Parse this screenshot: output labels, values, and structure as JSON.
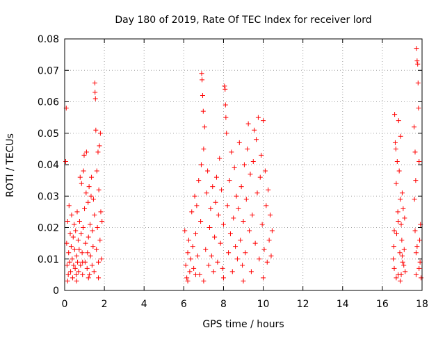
{
  "chart_data": {
    "type": "scatter",
    "title": "Day 180 of 2019, Rate Of TEC Index for receiver lord",
    "xlabel": "GPS time / hours",
    "ylabel": "ROTI / TECUs",
    "xlim": [
      0,
      18
    ],
    "ylim": [
      0,
      0.08
    ],
    "grid": true,
    "marker": "+",
    "color": "#ff0000",
    "x_ticks": [
      {
        "value": 0,
        "label": "0"
      },
      {
        "value": 2,
        "label": "2"
      },
      {
        "value": 4,
        "label": "4"
      },
      {
        "value": 6,
        "label": "6"
      },
      {
        "value": 8,
        "label": "8"
      },
      {
        "value": 10,
        "label": "10"
      },
      {
        "value": 12,
        "label": "12"
      },
      {
        "value": 14,
        "label": "14"
      },
      {
        "value": 16,
        "label": "16"
      },
      {
        "value": 18,
        "label": "18"
      }
    ],
    "y_ticks": [
      {
        "value": 0,
        "label": "0"
      },
      {
        "value": 0.01,
        "label": "0.01"
      },
      {
        "value": 0.02,
        "label": "0.02"
      },
      {
        "value": 0.03,
        "label": "0.03"
      },
      {
        "value": 0.04,
        "label": "0.04"
      },
      {
        "value": 0.05,
        "label": "0.05"
      },
      {
        "value": 0.06,
        "label": "0.06"
      },
      {
        "value": 0.07,
        "label": "0.07"
      },
      {
        "value": 0.08,
        "label": "0.08"
      }
    ],
    "series": [
      {
        "name": "ROTI",
        "points": [
          [
            0.05,
            0.041
          ],
          [
            0.08,
            0.058
          ],
          [
            0.1,
            0.015
          ],
          [
            0.12,
            0.008
          ],
          [
            0.15,
            0.022
          ],
          [
            0.18,
            0.005
          ],
          [
            0.2,
            0.012
          ],
          [
            0.22,
            0.027
          ],
          [
            0.25,
            0.009
          ],
          [
            0.28,
            0.018
          ],
          [
            0.3,
            0.006
          ],
          [
            0.33,
            0.014
          ],
          [
            0.35,
            0.024
          ],
          [
            0.38,
            0.01
          ],
          [
            0.4,
            0.004
          ],
          [
            0.43,
            0.017
          ],
          [
            0.45,
            0.008
          ],
          [
            0.48,
            0.021
          ],
          [
            0.5,
            0.013
          ],
          [
            0.53,
            0.007
          ],
          [
            0.55,
            0.019
          ],
          [
            0.58,
            0.005
          ],
          [
            0.6,
            0.011
          ],
          [
            0.63,
            0.025
          ],
          [
            0.65,
            0.009
          ],
          [
            0.68,
            0.016
          ],
          [
            0.7,
            0.006
          ],
          [
            0.73,
            0.013
          ],
          [
            0.75,
            0.022
          ],
          [
            0.78,
            0.036
          ],
          [
            0.8,
            0.008
          ],
          [
            0.83,
            0.018
          ],
          [
            0.85,
            0.034
          ],
          [
            0.88,
            0.012
          ],
          [
            0.9,
            0.005
          ],
          [
            0.93,
            0.02
          ],
          [
            0.95,
            0.038
          ],
          [
            0.98,
            0.043
          ],
          [
            1.0,
            0.026
          ],
          [
            1.03,
            0.009
          ],
          [
            1.05,
            0.015
          ],
          [
            1.08,
            0.031
          ],
          [
            1.1,
            0.044
          ],
          [
            1.13,
            0.007
          ],
          [
            1.15,
            0.012
          ],
          [
            1.18,
            0.028
          ],
          [
            1.2,
            0.017
          ],
          [
            1.23,
            0.033
          ],
          [
            1.25,
            0.005
          ],
          [
            1.28,
            0.021
          ],
          [
            1.3,
            0.011
          ],
          [
            1.33,
            0.03
          ],
          [
            1.35,
            0.036
          ],
          [
            1.38,
            0.008
          ],
          [
            1.4,
            0.019
          ],
          [
            1.43,
            0.014
          ],
          [
            1.45,
            0.029
          ],
          [
            1.48,
            0.006
          ],
          [
            1.5,
            0.024
          ],
          [
            1.52,
            0.066
          ],
          [
            1.53,
            0.063
          ],
          [
            1.55,
            0.061
          ],
          [
            1.57,
            0.051
          ],
          [
            1.6,
            0.013
          ],
          [
            1.62,
            0.038
          ],
          [
            1.65,
            0.02
          ],
          [
            1.68,
            0.044
          ],
          [
            1.7,
            0.009
          ],
          [
            1.72,
            0.032
          ],
          [
            1.75,
            0.046
          ],
          [
            1.78,
            0.016
          ],
          [
            1.8,
            0.05
          ],
          [
            1.82,
            0.025
          ],
          [
            1.85,
            0.01
          ],
          [
            1.88,
            0.022
          ],
          [
            0.15,
            0.003
          ],
          [
            0.6,
            0.003
          ],
          [
            1.2,
            0.004
          ],
          [
            1.7,
            0.004
          ],
          [
            0.9,
            0.009
          ],
          [
            6.05,
            0.019
          ],
          [
            6.1,
            0.008
          ],
          [
            6.15,
            0.004
          ],
          [
            6.2,
            0.012
          ],
          [
            6.25,
            0.016
          ],
          [
            6.3,
            0.006
          ],
          [
            6.35,
            0.01
          ],
          [
            6.4,
            0.025
          ],
          [
            6.45,
            0.014
          ],
          [
            6.5,
            0.007
          ],
          [
            6.55,
            0.03
          ],
          [
            6.6,
            0.018
          ],
          [
            6.65,
            0.027
          ],
          [
            6.7,
            0.011
          ],
          [
            6.75,
            0.035
          ],
          [
            6.8,
            0.005
          ],
          [
            6.85,
            0.022
          ],
          [
            6.88,
            0.04
          ],
          [
            6.9,
            0.069
          ],
          [
            6.92,
            0.067
          ],
          [
            6.95,
            0.062
          ],
          [
            6.98,
            0.057
          ],
          [
            7.0,
            0.045
          ],
          [
            7.05,
            0.052
          ],
          [
            7.1,
            0.013
          ],
          [
            7.15,
            0.031
          ],
          [
            7.2,
            0.038
          ],
          [
            7.25,
            0.008
          ],
          [
            7.3,
            0.02
          ],
          [
            7.35,
            0.026
          ],
          [
            7.4,
            0.011
          ],
          [
            7.45,
            0.033
          ],
          [
            7.5,
            0.006
          ],
          [
            7.55,
            0.017
          ],
          [
            7.6,
            0.028
          ],
          [
            7.65,
            0.036
          ],
          [
            7.7,
            0.009
          ],
          [
            7.75,
            0.024
          ],
          [
            7.8,
            0.042
          ],
          [
            7.85,
            0.015
          ],
          [
            7.9,
            0.032
          ],
          [
            7.95,
            0.007
          ],
          [
            8.0,
            0.021
          ],
          [
            8.05,
            0.065
          ],
          [
            8.08,
            0.064
          ],
          [
            8.1,
            0.059
          ],
          [
            8.12,
            0.055
          ],
          [
            8.15,
            0.05
          ],
          [
            8.2,
            0.027
          ],
          [
            8.25,
            0.012
          ],
          [
            8.3,
            0.035
          ],
          [
            8.35,
            0.018
          ],
          [
            8.4,
            0.044
          ],
          [
            8.45,
            0.006
          ],
          [
            8.5,
            0.023
          ],
          [
            8.55,
            0.039
          ],
          [
            8.6,
            0.014
          ],
          [
            8.65,
            0.03
          ],
          [
            8.7,
            0.01
          ],
          [
            8.75,
            0.026
          ],
          [
            8.8,
            0.047
          ],
          [
            8.85,
            0.016
          ],
          [
            8.9,
            0.033
          ],
          [
            8.95,
            0.008
          ],
          [
            9.0,
            0.022
          ],
          [
            9.05,
            0.04
          ],
          [
            9.1,
            0.012
          ],
          [
            9.15,
            0.029
          ],
          [
            9.2,
            0.045
          ],
          [
            9.25,
            0.053
          ],
          [
            9.3,
            0.019
          ],
          [
            9.35,
            0.037
          ],
          [
            9.4,
            0.006
          ],
          [
            9.45,
            0.024
          ],
          [
            9.5,
            0.041
          ],
          [
            9.55,
            0.051
          ],
          [
            9.6,
            0.015
          ],
          [
            9.65,
            0.048
          ],
          [
            9.7,
            0.031
          ],
          [
            9.75,
            0.055
          ],
          [
            9.8,
            0.01
          ],
          [
            9.85,
            0.036
          ],
          [
            9.9,
            0.043
          ],
          [
            9.95,
            0.021
          ],
          [
            10.0,
            0.054
          ],
          [
            10.05,
            0.013
          ],
          [
            10.1,
            0.038
          ],
          [
            10.15,
            0.027
          ],
          [
            10.2,
            0.009
          ],
          [
            10.25,
            0.032
          ],
          [
            10.3,
            0.016
          ],
          [
            10.35,
            0.024
          ],
          [
            10.4,
            0.011
          ],
          [
            10.45,
            0.019
          ],
          [
            6.2,
            0.003
          ],
          [
            7.0,
            0.003
          ],
          [
            8.0,
            0.004
          ],
          [
            9.0,
            0.003
          ],
          [
            10.0,
            0.004
          ],
          [
            6.6,
            0.005
          ],
          [
            16.55,
            0.01
          ],
          [
            16.58,
            0.014
          ],
          [
            16.6,
            0.007
          ],
          [
            16.62,
            0.056
          ],
          [
            16.65,
            0.047
          ],
          [
            16.68,
            0.045
          ],
          [
            16.7,
            0.034
          ],
          [
            16.72,
            0.018
          ],
          [
            16.75,
            0.041
          ],
          [
            16.78,
            0.025
          ],
          [
            16.8,
            0.005
          ],
          [
            16.82,
            0.054
          ],
          [
            16.85,
            0.038
          ],
          [
            16.88,
            0.012
          ],
          [
            16.9,
            0.029
          ],
          [
            16.92,
            0.049
          ],
          [
            16.95,
            0.021
          ],
          [
            16.98,
            0.016
          ],
          [
            17.0,
            0.031
          ],
          [
            17.02,
            0.009
          ],
          [
            17.05,
            0.026
          ],
          [
            17.08,
            0.008
          ],
          [
            17.1,
            0.013
          ],
          [
            17.12,
            0.023
          ],
          [
            17.15,
            0.006
          ],
          [
            17.6,
            0.052
          ],
          [
            17.62,
            0.029
          ],
          [
            17.65,
            0.044
          ],
          [
            17.68,
            0.035
          ],
          [
            17.7,
            0.012
          ],
          [
            17.72,
            0.077
          ],
          [
            17.75,
            0.073
          ],
          [
            17.78,
            0.072
          ],
          [
            17.8,
            0.066
          ],
          [
            17.82,
            0.058
          ],
          [
            17.85,
            0.041
          ],
          [
            17.88,
            0.016
          ],
          [
            17.9,
            0.009
          ],
          [
            17.92,
            0.021
          ],
          [
            17.95,
            0.004
          ],
          [
            16.7,
            0.004
          ],
          [
            16.9,
            0.003
          ],
          [
            17.7,
            0.005
          ],
          [
            17.85,
            0.007
          ],
          [
            16.6,
            0.019
          ],
          [
            16.8,
            0.022
          ],
          [
            17.0,
            0.011
          ],
          [
            17.75,
            0.014
          ],
          [
            17.65,
            0.019
          ],
          [
            16.95,
            0.005
          ]
        ]
      }
    ]
  }
}
